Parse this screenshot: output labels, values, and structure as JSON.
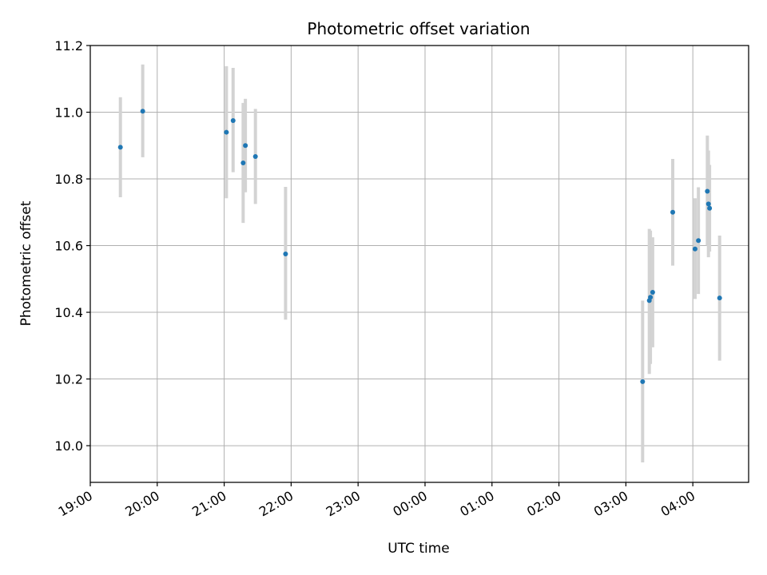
{
  "chart_data": {
    "type": "scatter",
    "title": "Photometric offset variation",
    "xlabel": "UTC time",
    "ylabel": "Photometric offset",
    "x_unit": "UTC time",
    "xlim": [
      "19:00",
      "04:50"
    ],
    "ylim": [
      9.89,
      11.2
    ],
    "yticks": [
      10.0,
      10.2,
      10.4,
      10.6,
      10.8,
      11.0,
      11.2
    ],
    "ytick_labels": [
      "10.0",
      "10.2",
      "10.4",
      "10.6",
      "10.8",
      "11.0",
      "11.2"
    ],
    "xticks": [
      "19:00",
      "20:00",
      "21:00",
      "22:00",
      "23:00",
      "00:00",
      "01:00",
      "02:00",
      "03:00",
      "04:00"
    ],
    "xtick_labels": [
      "19:00",
      "20:00",
      "21:00",
      "22:00",
      "23:00",
      "00:00",
      "01:00",
      "02:00",
      "03:00",
      "04:00"
    ],
    "grid": true,
    "colors": {
      "points": "#1f77b4",
      "error_bars": "#d3d3d3",
      "grid": "#b0b0b0",
      "axes": "#000000"
    },
    "series": [
      {
        "points": [
          {
            "x": "19:27",
            "y": 10.895,
            "yerr_low": 10.745,
            "yerr_high": 11.045
          },
          {
            "x": "19:47",
            "y": 11.003,
            "yerr_low": 10.865,
            "yerr_high": 11.143
          },
          {
            "x": "21:02",
            "y": 10.94,
            "yerr_low": 10.742,
            "yerr_high": 11.138
          },
          {
            "x": "21:08",
            "y": 10.975,
            "yerr_low": 10.82,
            "yerr_high": 11.133
          },
          {
            "x": "21:17",
            "y": 10.848,
            "yerr_low": 10.668,
            "yerr_high": 11.028
          },
          {
            "x": "21:19",
            "y": 10.9,
            "yerr_low": 10.76,
            "yerr_high": 11.04
          },
          {
            "x": "21:28",
            "y": 10.867,
            "yerr_low": 10.725,
            "yerr_high": 11.01
          },
          {
            "x": "21:55",
            "y": 10.575,
            "yerr_low": 10.378,
            "yerr_high": 10.776
          },
          {
            "x": "03:15",
            "y": 10.192,
            "yerr_low": 9.95,
            "yerr_high": 10.435
          },
          {
            "x": "03:21",
            "y": 10.435,
            "yerr_low": 10.215,
            "yerr_high": 10.65
          },
          {
            "x": "03:22",
            "y": 10.445,
            "yerr_low": 10.245,
            "yerr_high": 10.645
          },
          {
            "x": "03:24",
            "y": 10.46,
            "yerr_low": 10.295,
            "yerr_high": 10.625
          },
          {
            "x": "03:42",
            "y": 10.7,
            "yerr_low": 10.54,
            "yerr_high": 10.86
          },
          {
            "x": "04:02",
            "y": 10.59,
            "yerr_low": 10.44,
            "yerr_high": 10.742
          },
          {
            "x": "04:05",
            "y": 10.615,
            "yerr_low": 10.455,
            "yerr_high": 10.775
          },
          {
            "x": "04:13",
            "y": 10.763,
            "yerr_low": 10.6,
            "yerr_high": 10.93
          },
          {
            "x": "04:14",
            "y": 10.725,
            "yerr_low": 10.565,
            "yerr_high": 10.885
          },
          {
            "x": "04:15",
            "y": 10.712,
            "yerr_low": 10.582,
            "yerr_high": 10.842
          },
          {
            "x": "04:24",
            "y": 10.443,
            "yerr_low": 10.255,
            "yerr_high": 10.63
          }
        ]
      }
    ]
  }
}
